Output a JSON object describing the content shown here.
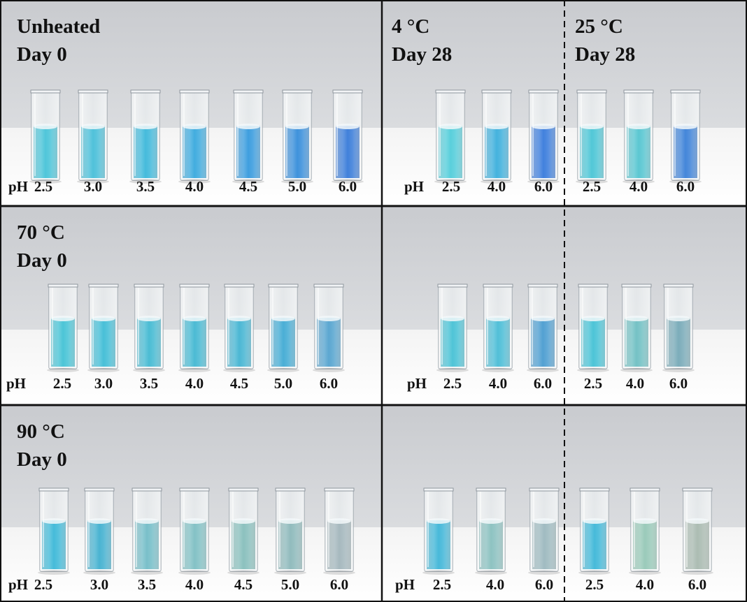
{
  "panels": [
    {
      "id": "unheated",
      "title_line1": "Unheated",
      "title_line2": "Day 0",
      "left": {
        "ph_prefix": "pH",
        "ph_values": [
          "2.5",
          "3.0",
          "3.5",
          "4.0",
          "4.5",
          "5.0",
          "6.0"
        ],
        "liquid_colors": [
          "#1fb6cf",
          "#1fb0d0",
          "#12a8d2",
          "#0e96d6",
          "#0a84d6",
          "#0a74d2",
          "#0c5ed0"
        ]
      },
      "middle": {
        "title_line1": "4 °C",
        "title_line2": "Day 28",
        "ph_prefix": "pH",
        "ph_values": [
          "2.5",
          "4.0",
          "6.0"
        ],
        "liquid_colors": [
          "#2cc2d2",
          "#119dd4",
          "#0d5ed4"
        ]
      },
      "right": {
        "title_line1": "25 °C",
        "title_line2": "Day 28",
        "ph_values": [
          "2.5",
          "4.0",
          "6.0"
        ],
        "liquid_colors": [
          "#22b8cc",
          "#2fb8c6",
          "#1065cf"
        ]
      }
    },
    {
      "id": "70c",
      "title_line1": "70 °C",
      "title_line2": "Day 0",
      "left": {
        "ph_prefix": "pH",
        "ph_values": [
          "2.5",
          "3.0",
          "3.5",
          "4.0",
          "4.5",
          "5.0",
          "6.0"
        ],
        "liquid_colors": [
          "#1bb5cc",
          "#16aecd",
          "#1aaac8",
          "#1aa8c8",
          "#1ba4c8",
          "#1898ca",
          "#2f8fc4"
        ]
      },
      "middle": {
        "ph_prefix": "pH",
        "ph_values": [
          "2.5",
          "4.0",
          "6.0"
        ],
        "liquid_colors": [
          "#1fb4cc",
          "#22aecd",
          "#2387c6"
        ]
      },
      "right": {
        "ph_values": [
          "2.5",
          "4.0",
          "6.0"
        ],
        "liquid_colors": [
          "#1cb4cc",
          "#4fb1b5",
          "#5896a7"
        ]
      }
    },
    {
      "id": "90c",
      "title_line1": "90 °C",
      "title_line2": "Day 0",
      "left": {
        "ph_prefix": "pH",
        "ph_values": [
          "2.5",
          "3.0",
          "3.5",
          "4.0",
          "4.5",
          "5.0",
          "6.0"
        ],
        "liquid_colors": [
          "#12a9cf",
          "#189fc5",
          "#54aebb",
          "#62b1b6",
          "#6cb0ad",
          "#73a9ab",
          "#8ea6ad"
        ]
      },
      "middle": {
        "ph_prefix": "pH",
        "ph_values": [
          "2.5",
          "4.0",
          "6.0"
        ],
        "liquid_colors": [
          "#16a6cf",
          "#6fb2b1",
          "#86a9b0"
        ]
      },
      "right": {
        "ph_values": [
          "2.5",
          "4.0",
          "6.0"
        ],
        "liquid_colors": [
          "#13a7cf",
          "#7fbca7",
          "#95aa9e"
        ]
      }
    }
  ]
}
